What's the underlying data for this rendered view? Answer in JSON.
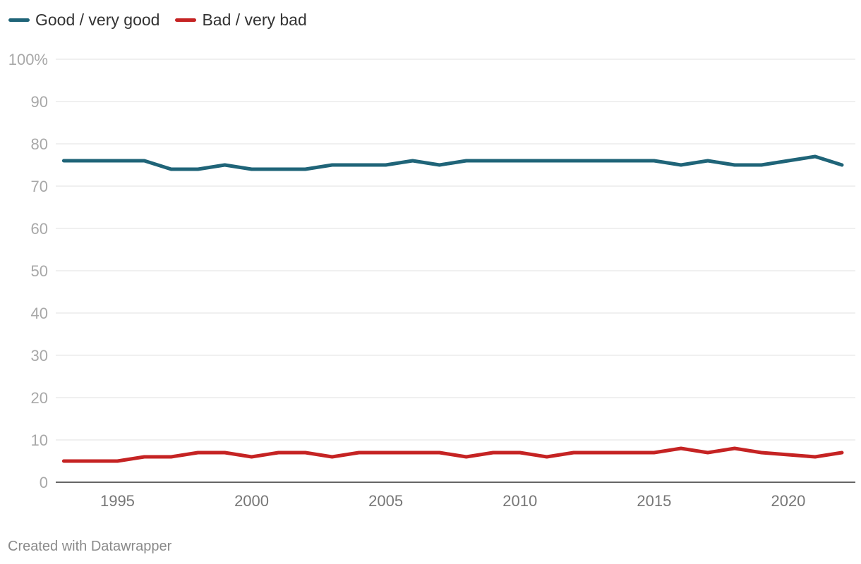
{
  "legend": [
    {
      "name": "Good / very good",
      "color": "#1f6478"
    },
    {
      "name": "Bad / very bad",
      "color": "#c52323"
    }
  ],
  "footer": {
    "text": "Created with Datawrapper"
  },
  "chart_data": {
    "type": "line",
    "title": "",
    "xlabel": "",
    "ylabel": "",
    "x": [
      1993,
      1994,
      1995,
      1996,
      1997,
      1998,
      1999,
      2000,
      2001,
      2002,
      2003,
      2004,
      2005,
      2006,
      2007,
      2008,
      2009,
      2010,
      2011,
      2012,
      2013,
      2014,
      2015,
      2016,
      2017,
      2018,
      2019,
      2020,
      2021,
      2022
    ],
    "xlim": [
      1992.7,
      2022.5
    ],
    "ylim": [
      0,
      100
    ],
    "yticks": [
      {
        "value": 0,
        "label": "0"
      },
      {
        "value": 10,
        "label": "10"
      },
      {
        "value": 20,
        "label": "20"
      },
      {
        "value": 30,
        "label": "30"
      },
      {
        "value": 40,
        "label": "40"
      },
      {
        "value": 50,
        "label": "50"
      },
      {
        "value": 60,
        "label": "60"
      },
      {
        "value": 70,
        "label": "70"
      },
      {
        "value": 80,
        "label": "80"
      },
      {
        "value": 90,
        "label": "90"
      },
      {
        "value": 100,
        "label": "100%"
      }
    ],
    "xticks": [
      {
        "value": 1995,
        "label": "1995"
      },
      {
        "value": 2000,
        "label": "2000"
      },
      {
        "value": 2005,
        "label": "2005"
      },
      {
        "value": 2010,
        "label": "2010"
      },
      {
        "value": 2015,
        "label": "2015"
      },
      {
        "value": 2020,
        "label": "2020"
      }
    ],
    "grid": true,
    "legend_position": "top-left",
    "series": [
      {
        "name": "Good / very good",
        "color": "#1f6478",
        "values": [
          76,
          76,
          76,
          76,
          74,
          74,
          75,
          74,
          74,
          74,
          75,
          75,
          75,
          76,
          75,
          76,
          76,
          76,
          76,
          76,
          76,
          76,
          76,
          75,
          76,
          75,
          75,
          76,
          77,
          75
        ]
      },
      {
        "name": "Bad / very bad",
        "color": "#c52323",
        "values": [
          5,
          5,
          5,
          6,
          6,
          7,
          7,
          6,
          7,
          7,
          6,
          7,
          7,
          7,
          7,
          6,
          7,
          7,
          6,
          7,
          7,
          7,
          7,
          8,
          7,
          8,
          7,
          6.5,
          6,
          7
        ]
      }
    ]
  }
}
